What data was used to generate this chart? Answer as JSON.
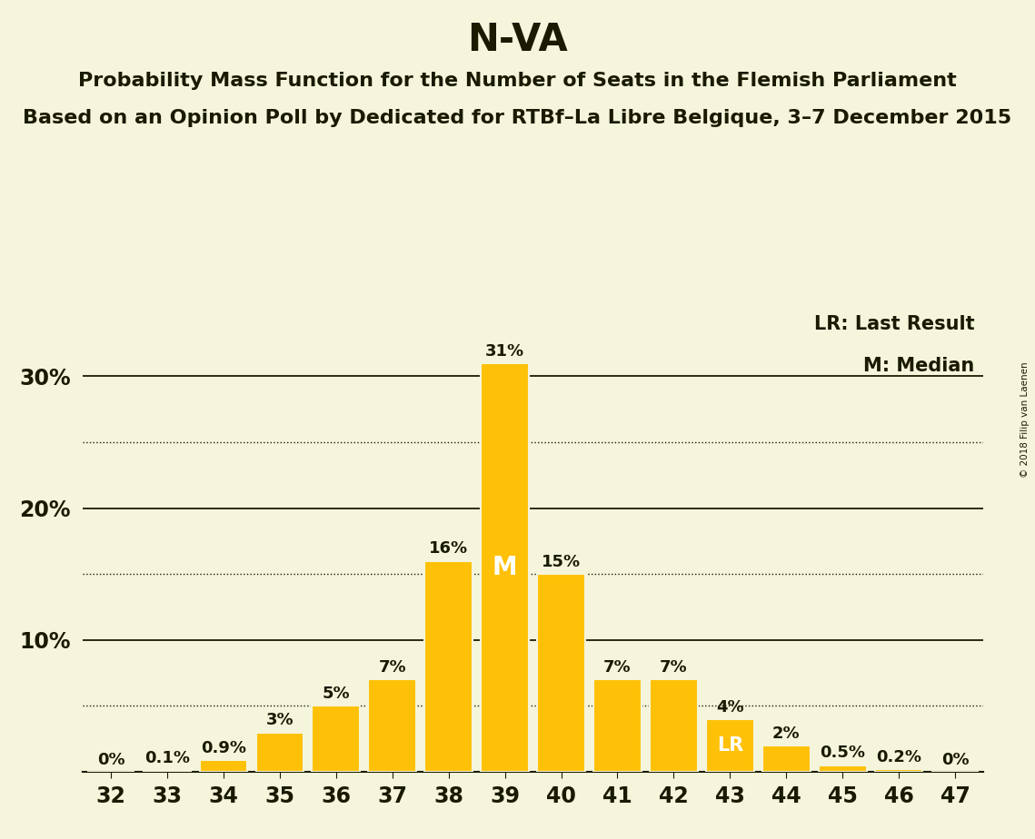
{
  "title": "N-VA",
  "subtitle1": "Probability Mass Function for the Number of Seats in the Flemish Parliament",
  "subtitle2": "Based on an Opinion Poll by Dedicated for RTBf–La Libre Belgique, 3–7 December 2015",
  "copyright": "© 2018 Filip van Laenen",
  "seats": [
    32,
    33,
    34,
    35,
    36,
    37,
    38,
    39,
    40,
    41,
    42,
    43,
    44,
    45,
    46,
    47
  ],
  "probabilities": [
    0.0,
    0.1,
    0.9,
    3.0,
    5.0,
    7.0,
    16.0,
    31.0,
    15.0,
    7.0,
    7.0,
    4.0,
    2.0,
    0.5,
    0.2,
    0.0
  ],
  "labels": [
    "0%",
    "0.1%",
    "0.9%",
    "3%",
    "5%",
    "7%",
    "16%",
    "31%",
    "15%",
    "7%",
    "7%",
    "4%",
    "2%",
    "0.5%",
    "0.2%",
    "0%"
  ],
  "bar_color": "#FFC107",
  "background_color": "#F5F5DC",
  "text_color": "#1a1a00",
  "median_seat": 39,
  "last_result_seat": 43,
  "legend_lr": "LR: Last Result",
  "legend_m": "M: Median",
  "ylim": [
    0,
    35
  ],
  "solid_yticks": [
    10,
    20,
    30
  ],
  "dotted_yticks": [
    5,
    15,
    25
  ],
  "title_fontsize": 30,
  "subtitle_fontsize": 16,
  "label_fontsize": 13,
  "tick_fontsize": 17,
  "legend_fontsize": 15,
  "median_fontsize": 20,
  "lr_fontsize": 15
}
